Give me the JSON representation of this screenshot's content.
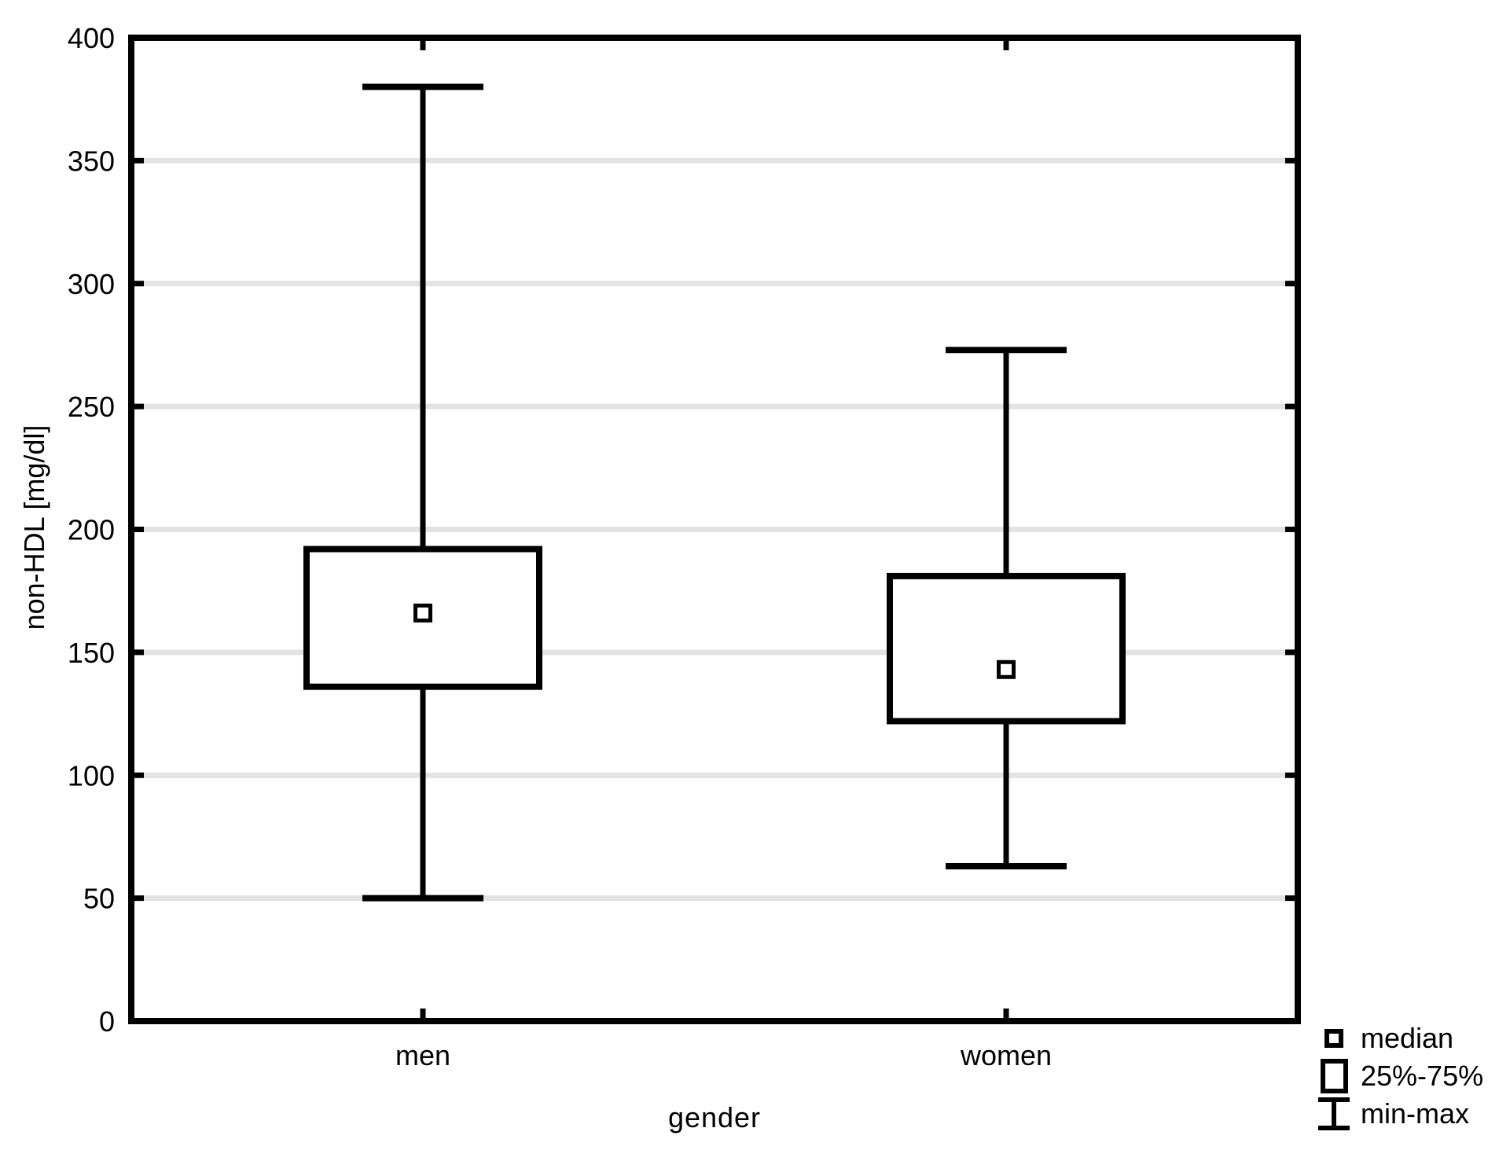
{
  "chart_data": {
    "type": "box",
    "title": "",
    "xlabel": "gender",
    "ylabel": "non-HDL [mg/dl]",
    "ylim": [
      0,
      400
    ],
    "yticks": [
      0,
      50,
      100,
      150,
      200,
      250,
      300,
      350,
      400
    ],
    "grid": "horizontal",
    "legend_position": "bottom-right",
    "categories": [
      "men",
      "women"
    ],
    "series": [
      {
        "name": "men",
        "min": 50,
        "q1": 136,
        "median": 166,
        "q3": 192,
        "max": 380
      },
      {
        "name": "women",
        "min": 63,
        "q1": 122,
        "median": 143,
        "q3": 181,
        "max": 273
      }
    ],
    "legend": [
      {
        "label": "median"
      },
      {
        "label": "25%-75%"
      },
      {
        "label": "min-max"
      }
    ],
    "colors": {
      "line": "#000000",
      "grid": "#e3e3e3",
      "background": "#ffffff",
      "box_fill": "#ffffff"
    }
  }
}
